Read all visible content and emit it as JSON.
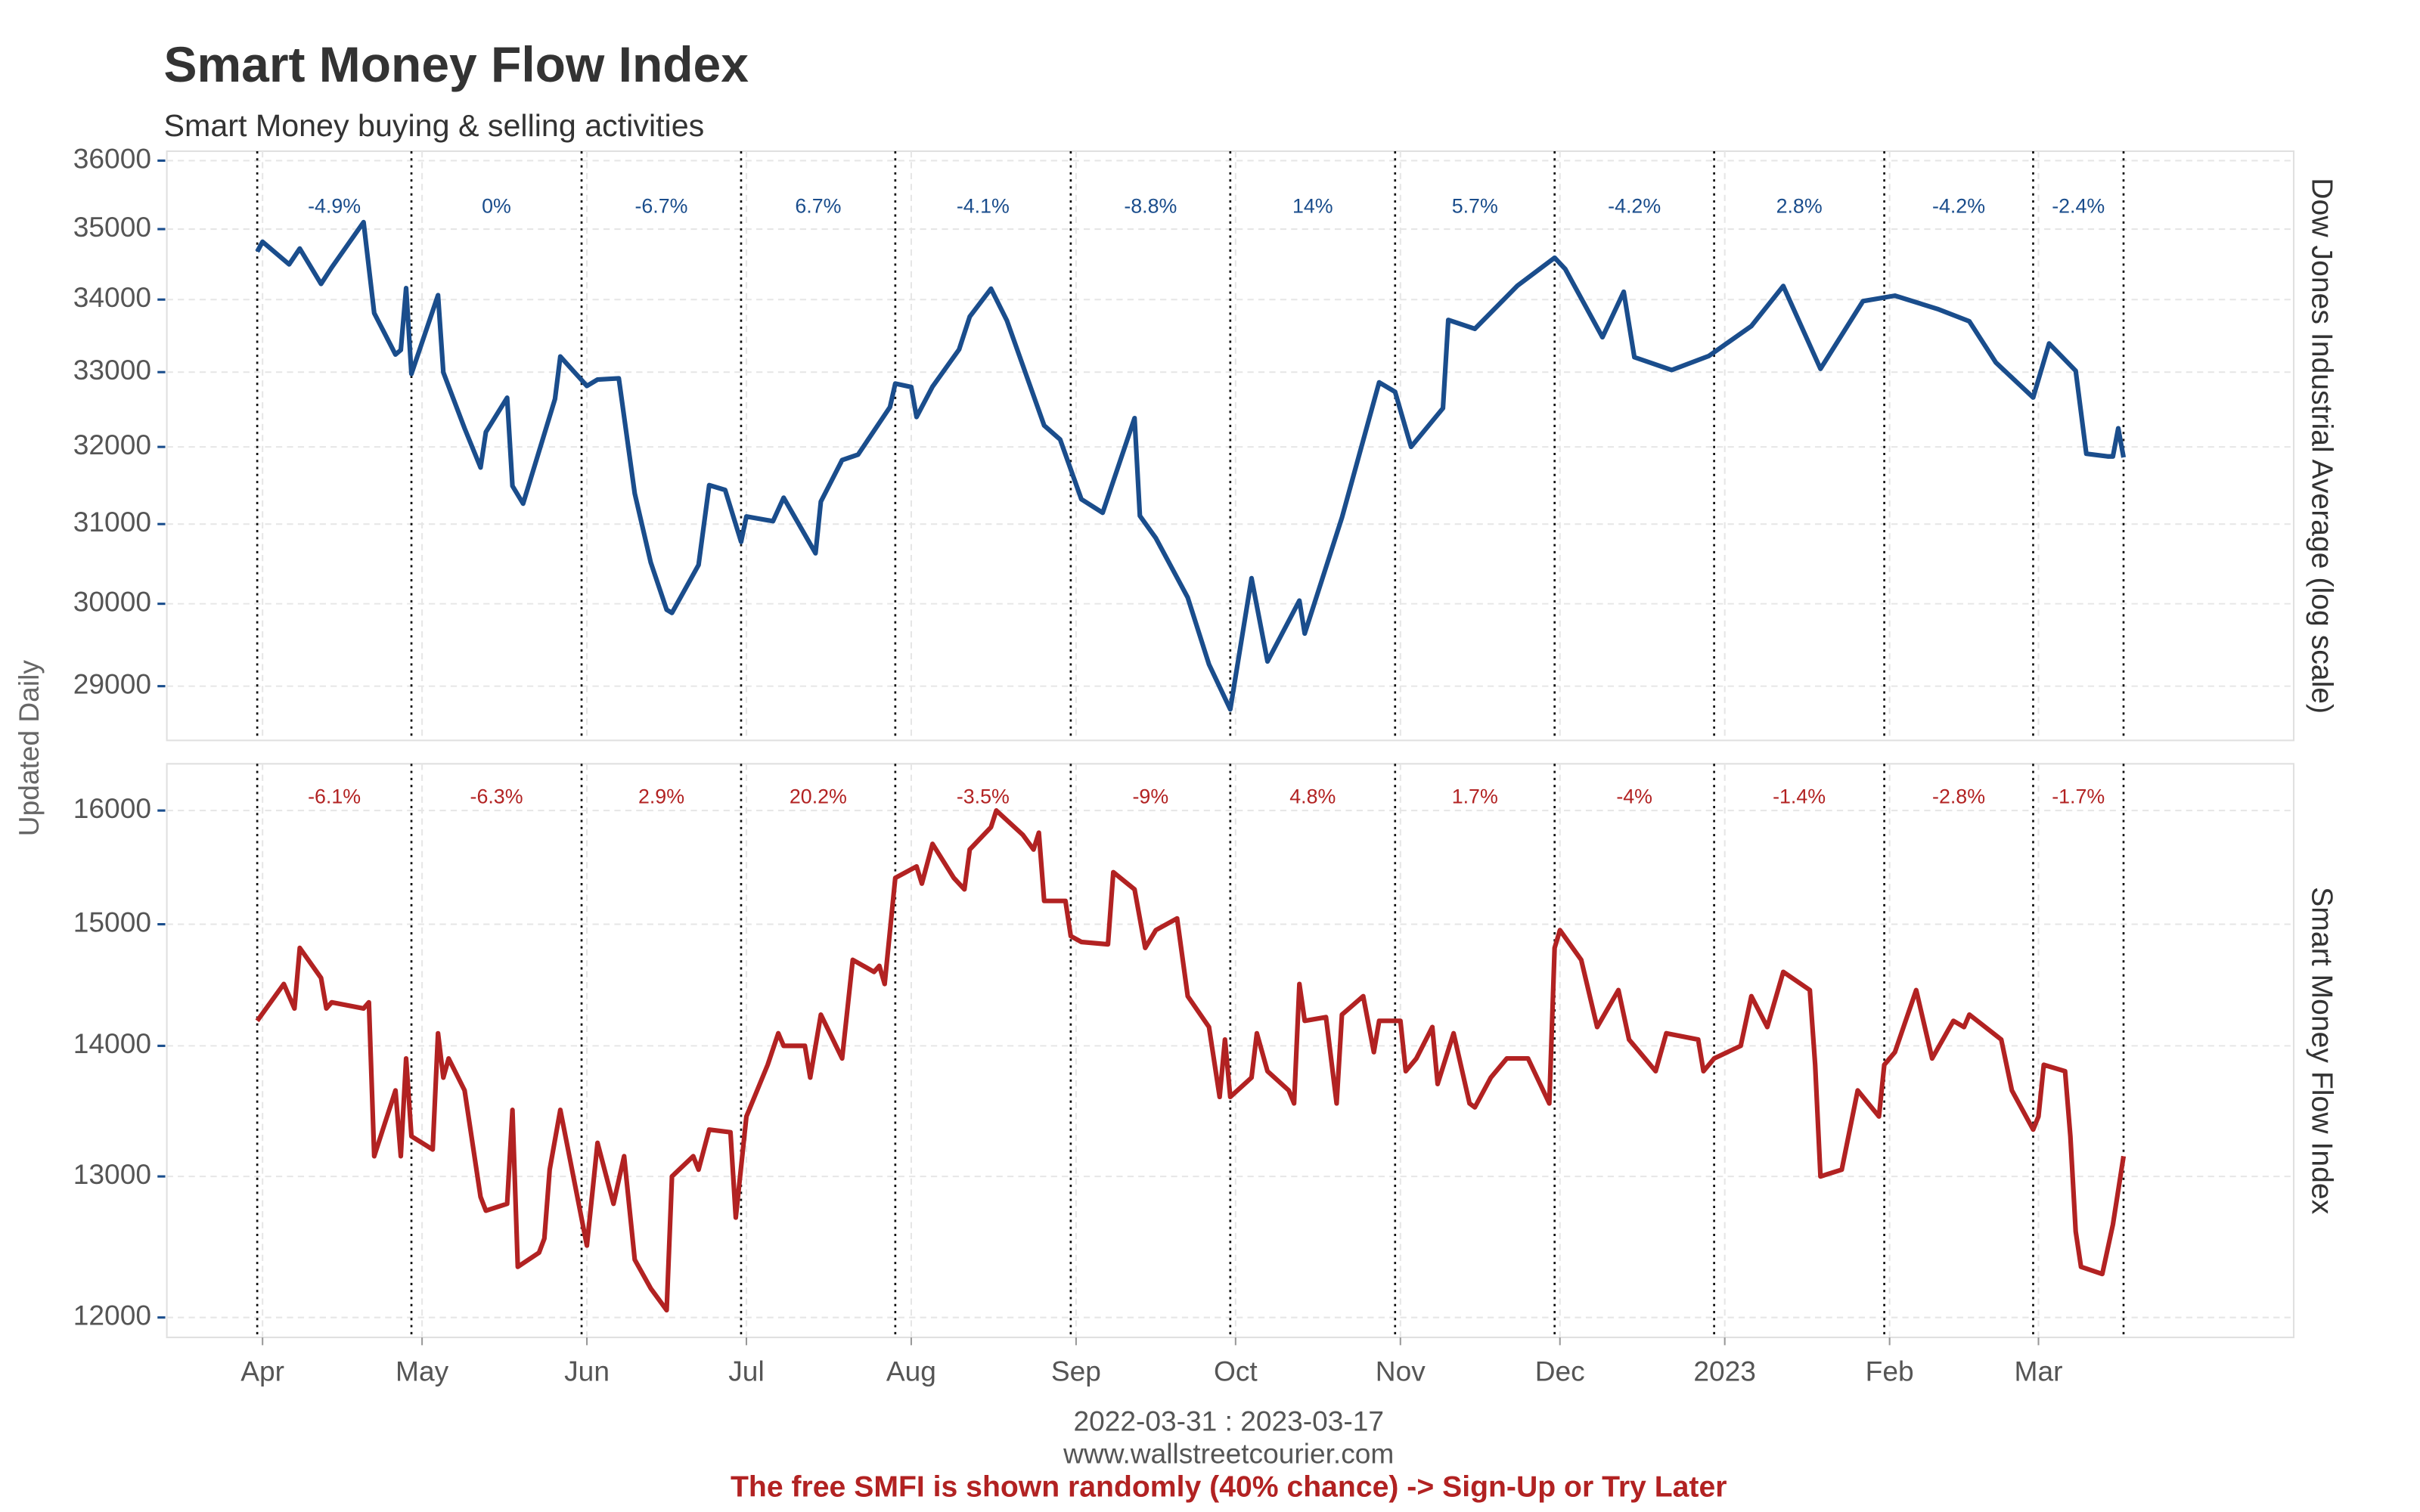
{
  "left_label": "Updated Daily",
  "footer": {
    "date_range": "2022-03-31 : 2023-03-17",
    "website": "www.wallstreetcourier.com",
    "notice": "The free SMFI is shown randomly (40% chance) -> Sign-Up or Try Later"
  },
  "chart_data": [
    {
      "type": "line",
      "title": "Smart Money Flow Index",
      "subtitle": "Smart Money buying & selling activities",
      "y_label": "Dow Jones Industrial Average (log scale)",
      "color": "#1a4d8c",
      "log_y": true,
      "grid": true,
      "xlim": [
        "2022-03-14",
        "2023-04-18"
      ],
      "ylim": [
        28360,
        36140
      ],
      "yticks": [
        29000,
        30000,
        31000,
        32000,
        33000,
        34000,
        35000,
        36000
      ],
      "boundaries": [
        "2022-03-31",
        "2022-04-29",
        "2022-05-31",
        "2022-06-30",
        "2022-07-29",
        "2022-08-31",
        "2022-09-30",
        "2022-10-31",
        "2022-11-30",
        "2022-12-30",
        "2023-01-31",
        "2023-02-28",
        "2023-03-17"
      ],
      "period_labels": [
        "-4.9%",
        "0%",
        "-6.7%",
        "6.7%",
        "-4.1%",
        "-8.8%",
        "14%",
        "5.7%",
        "-4.2%",
        "2.8%",
        "-4.2%",
        "-2.4%"
      ],
      "x": [
        "2022-03-31",
        "2022-04-01",
        "2022-04-06",
        "2022-04-08",
        "2022-04-12",
        "2022-04-14",
        "2022-04-20",
        "2022-04-22",
        "2022-04-26",
        "2022-04-27",
        "2022-04-28",
        "2022-04-29",
        "2022-05-04",
        "2022-05-05",
        "2022-05-09",
        "2022-05-12",
        "2022-05-13",
        "2022-05-17",
        "2022-05-18",
        "2022-05-20",
        "2022-05-26",
        "2022-05-27",
        "2022-06-01",
        "2022-06-03",
        "2022-06-07",
        "2022-06-10",
        "2022-06-13",
        "2022-06-16",
        "2022-06-17",
        "2022-06-22",
        "2022-06-24",
        "2022-06-27",
        "2022-06-30",
        "2022-07-01",
        "2022-07-06",
        "2022-07-08",
        "2022-07-14",
        "2022-07-15",
        "2022-07-19",
        "2022-07-22",
        "2022-07-28",
        "2022-07-29",
        "2022-08-01",
        "2022-08-02",
        "2022-08-05",
        "2022-08-10",
        "2022-08-12",
        "2022-08-16",
        "2022-08-19",
        "2022-08-26",
        "2022-08-29",
        "2022-09-02",
        "2022-09-06",
        "2022-09-12",
        "2022-09-13",
        "2022-09-16",
        "2022-09-22",
        "2022-09-26",
        "2022-09-30",
        "2022-10-04",
        "2022-10-07",
        "2022-10-13",
        "2022-10-14",
        "2022-10-21",
        "2022-10-28",
        "2022-10-31",
        "2022-11-03",
        "2022-11-09",
        "2022-11-10",
        "2022-11-15",
        "2022-11-23",
        "2022-11-30",
        "2022-12-02",
        "2022-12-09",
        "2022-12-13",
        "2022-12-15",
        "2022-12-22",
        "2022-12-29",
        "2023-01-06",
        "2023-01-12",
        "2023-01-19",
        "2023-01-27",
        "2023-02-02",
        "2023-02-10",
        "2023-02-16",
        "2023-02-21",
        "2023-02-28",
        "2023-03-03",
        "2023-03-08",
        "2023-03-10",
        "2023-03-14",
        "2023-03-15",
        "2023-03-16",
        "2023-03-17"
      ],
      "values": [
        34678,
        34818,
        34496,
        34721,
        34220,
        34451,
        35100,
        33811,
        33240,
        33302,
        34160,
        32977,
        34061,
        32997,
        32245,
        31730,
        32196,
        32654,
        31490,
        31262,
        32637,
        33212,
        32813,
        32899,
        32916,
        31392,
        30516,
        29927,
        29888,
        30483,
        31500,
        31438,
        30775,
        31097,
        31037,
        31338,
        30630,
        31288,
        31827,
        31899,
        32529,
        32845,
        32798,
        32396,
        32803,
        33309,
        33761,
        34152,
        33706,
        32283,
        32098,
        31318,
        31145,
        32381,
        31105,
        30822,
        30077,
        29261,
        28725,
        30317,
        29297,
        30039,
        29635,
        31082,
        32861,
        32733,
        32001,
        32514,
        33716,
        33593,
        34194,
        34590,
        34430,
        33477,
        34109,
        33203,
        33028,
        33220,
        33631,
        34190,
        33045,
        33978,
        34054,
        33869,
        33697,
        33129,
        32657,
        33391,
        33018,
        31910,
        31875,
        31875,
        32246,
        31862
      ]
    },
    {
      "type": "line",
      "y_label": "Smart Money Flow Index",
      "color": "#b22222",
      "log_y": true,
      "grid": true,
      "xlim": [
        "2022-03-14",
        "2023-04-18"
      ],
      "ylim": [
        11865,
        16430
      ],
      "yticks": [
        12000,
        13000,
        14000,
        15000,
        16000
      ],
      "xticks": [
        {
          "value": "2022-04-01",
          "label": "Apr"
        },
        {
          "value": "2022-05-01",
          "label": "May"
        },
        {
          "value": "2022-06-01",
          "label": "Jun"
        },
        {
          "value": "2022-07-01",
          "label": "Jul"
        },
        {
          "value": "2022-08-01",
          "label": "Aug"
        },
        {
          "value": "2022-09-01",
          "label": "Sep"
        },
        {
          "value": "2022-10-01",
          "label": "Oct"
        },
        {
          "value": "2022-11-01",
          "label": "Nov"
        },
        {
          "value": "2022-12-01",
          "label": "Dec"
        },
        {
          "value": "2023-01-01",
          "label": "2023"
        },
        {
          "value": "2023-02-01",
          "label": "Feb"
        },
        {
          "value": "2023-03-01",
          "label": "Mar"
        }
      ],
      "boundaries": [
        "2022-03-31",
        "2022-04-29",
        "2022-05-31",
        "2022-06-30",
        "2022-07-29",
        "2022-08-31",
        "2022-09-30",
        "2022-10-31",
        "2022-11-30",
        "2022-12-30",
        "2023-01-31",
        "2023-02-28",
        "2023-03-17"
      ],
      "period_labels": [
        "-6.1%",
        "-6.3%",
        "2.9%",
        "20.2%",
        "-3.5%",
        "-9%",
        "4.8%",
        "1.7%",
        "-4%",
        "-1.4%",
        "-2.8%",
        "-1.7%"
      ],
      "x": [
        "2022-03-31",
        "2022-04-05",
        "2022-04-07",
        "2022-04-08",
        "2022-04-12",
        "2022-04-13",
        "2022-04-14",
        "2022-04-20",
        "2022-04-21",
        "2022-04-22",
        "2022-04-26",
        "2022-04-27",
        "2022-04-28",
        "2022-04-29",
        "2022-05-03",
        "2022-05-04",
        "2022-05-05",
        "2022-05-06",
        "2022-05-09",
        "2022-05-12",
        "2022-05-13",
        "2022-05-17",
        "2022-05-18",
        "2022-05-19",
        "2022-05-23",
        "2022-05-24",
        "2022-05-25",
        "2022-05-27",
        "2022-06-01",
        "2022-06-03",
        "2022-06-06",
        "2022-06-08",
        "2022-06-10",
        "2022-06-13",
        "2022-06-16",
        "2022-06-17",
        "2022-06-21",
        "2022-06-22",
        "2022-06-24",
        "2022-06-28",
        "2022-06-29",
        "2022-07-01",
        "2022-07-05",
        "2022-07-07",
        "2022-07-08",
        "2022-07-12",
        "2022-07-13",
        "2022-07-15",
        "2022-07-19",
        "2022-07-21",
        "2022-07-25",
        "2022-07-26",
        "2022-07-27",
        "2022-07-29",
        "2022-08-02",
        "2022-08-03",
        "2022-08-05",
        "2022-08-09",
        "2022-08-11",
        "2022-08-12",
        "2022-08-16",
        "2022-08-17",
        "2022-08-22",
        "2022-08-24",
        "2022-08-25",
        "2022-08-26",
        "2022-08-30",
        "2022-08-31",
        "2022-09-02",
        "2022-09-07",
        "2022-09-08",
        "2022-09-12",
        "2022-09-14",
        "2022-09-16",
        "2022-09-20",
        "2022-09-22",
        "2022-09-26",
        "2022-09-28",
        "2022-09-29",
        "2022-09-30",
        "2022-10-04",
        "2022-10-05",
        "2022-10-07",
        "2022-10-11",
        "2022-10-12",
        "2022-10-13",
        "2022-10-14",
        "2022-10-18",
        "2022-10-20",
        "2022-10-21",
        "2022-10-25",
        "2022-10-27",
        "2022-10-28",
        "2022-11-01",
        "2022-11-02",
        "2022-11-04",
        "2022-11-07",
        "2022-11-08",
        "2022-11-11",
        "2022-11-14",
        "2022-11-15",
        "2022-11-18",
        "2022-11-21",
        "2022-11-25",
        "2022-11-29",
        "2022-11-30",
        "2022-12-01",
        "2022-12-05",
        "2022-12-08",
        "2022-12-12",
        "2022-12-14",
        "2022-12-16",
        "2022-12-19",
        "2022-12-21",
        "2022-12-27",
        "2022-12-28",
        "2022-12-30",
        "2023-01-04",
        "2023-01-06",
        "2023-01-09",
        "2023-01-12",
        "2023-01-17",
        "2023-01-18",
        "2023-01-19",
        "2023-01-23",
        "2023-01-26",
        "2023-01-30",
        "2023-01-31",
        "2023-02-02",
        "2023-02-06",
        "2023-02-09",
        "2023-02-13",
        "2023-02-15",
        "2023-02-16",
        "2023-02-22",
        "2023-02-24",
        "2023-02-28",
        "2023-03-01",
        "2023-03-02",
        "2023-03-06",
        "2023-03-07",
        "2023-03-08",
        "2023-03-09",
        "2023-03-13",
        "2023-03-15",
        "2023-03-17"
      ],
      "values": [
        14200,
        14500,
        14300,
        14800,
        14550,
        14300,
        14350,
        14300,
        14350,
        13150,
        13650,
        13150,
        13900,
        13300,
        13200,
        14100,
        13750,
        13900,
        13650,
        12850,
        12750,
        12800,
        13500,
        12350,
        12450,
        12550,
        13050,
        13500,
        12500,
        13250,
        12800,
        13150,
        12400,
        12200,
        12050,
        13000,
        13150,
        13050,
        13350,
        13330,
        12700,
        13450,
        13850,
        14100,
        14000,
        14000,
        13750,
        14250,
        13900,
        14700,
        14600,
        14650,
        14500,
        15400,
        15500,
        15350,
        15700,
        15400,
        15300,
        15650,
        15850,
        16000,
        15780,
        15650,
        15800,
        15200,
        15200,
        14900,
        14850,
        14830,
        15450,
        15300,
        14800,
        14950,
        15050,
        14400,
        14150,
        13600,
        14050,
        13600,
        13750,
        14100,
        13800,
        13650,
        13550,
        14500,
        14200,
        14230,
        13550,
        14250,
        14400,
        13950,
        14200,
        14200,
        13800,
        13900,
        14150,
        13700,
        14100,
        13550,
        13520,
        13750,
        13900,
        13900,
        13550,
        14800,
        14950,
        14700,
        14150,
        14450,
        14050,
        13950,
        13800,
        14100,
        14050,
        13800,
        13900,
        14000,
        14400,
        14150,
        14600,
        14450,
        13850,
        13000,
        13050,
        13650,
        13450,
        13850,
        13950,
        14450,
        13900,
        14200,
        14150,
        14250,
        14050,
        13650,
        13350,
        13450,
        13850,
        13800,
        13300,
        12600,
        12350,
        12300,
        12650,
        13150
      ]
    }
  ]
}
